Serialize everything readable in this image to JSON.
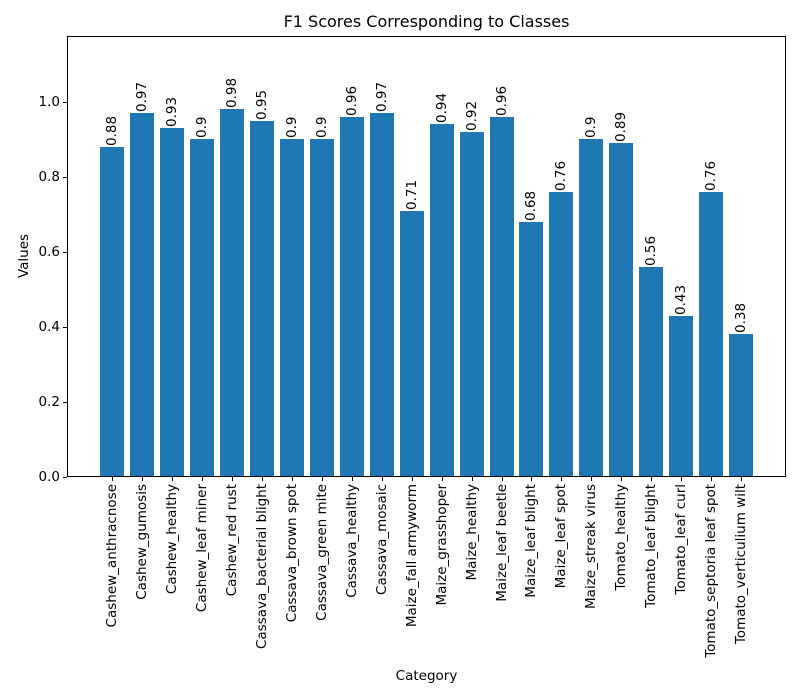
{
  "chart_data": {
    "type": "bar",
    "title": "F1 Scores Corresponding to Classes",
    "xlabel": "Category",
    "ylabel": "Values",
    "categories": [
      "Cashew_anthracnose",
      "Cashew_gumosis",
      "Cashew_healthy",
      "Cashew_leaf miner",
      "Cashew_red rust",
      "Cassava_bacterial blight",
      "Cassava_brown spot",
      "Cassava_green mite",
      "Cassava_healthy",
      "Cassava_mosaic",
      "Maize_fall armyworm",
      "Maize_grasshoper",
      "Maize_healthy",
      "Maize_leaf beetle",
      "Maize_leaf blight",
      "Maize_leaf spot",
      "Maize_streak virus",
      "Tomato_healthy",
      "Tomato_leaf blight",
      "Tomato_leaf curl",
      "Tomato_septoria leaf spot",
      "Tomato_verticulium wilt"
    ],
    "values": [
      0.88,
      0.97,
      0.93,
      0.9,
      0.98,
      0.95,
      0.9,
      0.9,
      0.96,
      0.97,
      0.71,
      0.94,
      0.92,
      0.96,
      0.68,
      0.76,
      0.9,
      0.89,
      0.56,
      0.43,
      0.76,
      0.38
    ],
    "value_labels": [
      "0.88",
      "0.97",
      "0.93",
      "0.9",
      "0.98",
      "0.95",
      "0.9",
      "0.9",
      "0.96",
      "0.97",
      "0.71",
      "0.94",
      "0.92",
      "0.96",
      "0.68",
      "0.76",
      "0.9",
      "0.89",
      "0.56",
      "0.43",
      "0.76",
      "0.38"
    ],
    "yticks": [
      "0.0",
      "0.2",
      "0.4",
      "0.6",
      "0.8",
      "1.0"
    ],
    "ylim": [
      0,
      1.176
    ],
    "xlim": [
      -1.49,
      22.49
    ],
    "bar_width": 0.8,
    "bar_color": "#1f77b4",
    "text_color": "#000000",
    "spine_color": "#000000",
    "background_color": "#ffffff",
    "grid": false,
    "legend_position": "none",
    "x_tick_rotation": 90,
    "value_label_rotation": 90
  }
}
